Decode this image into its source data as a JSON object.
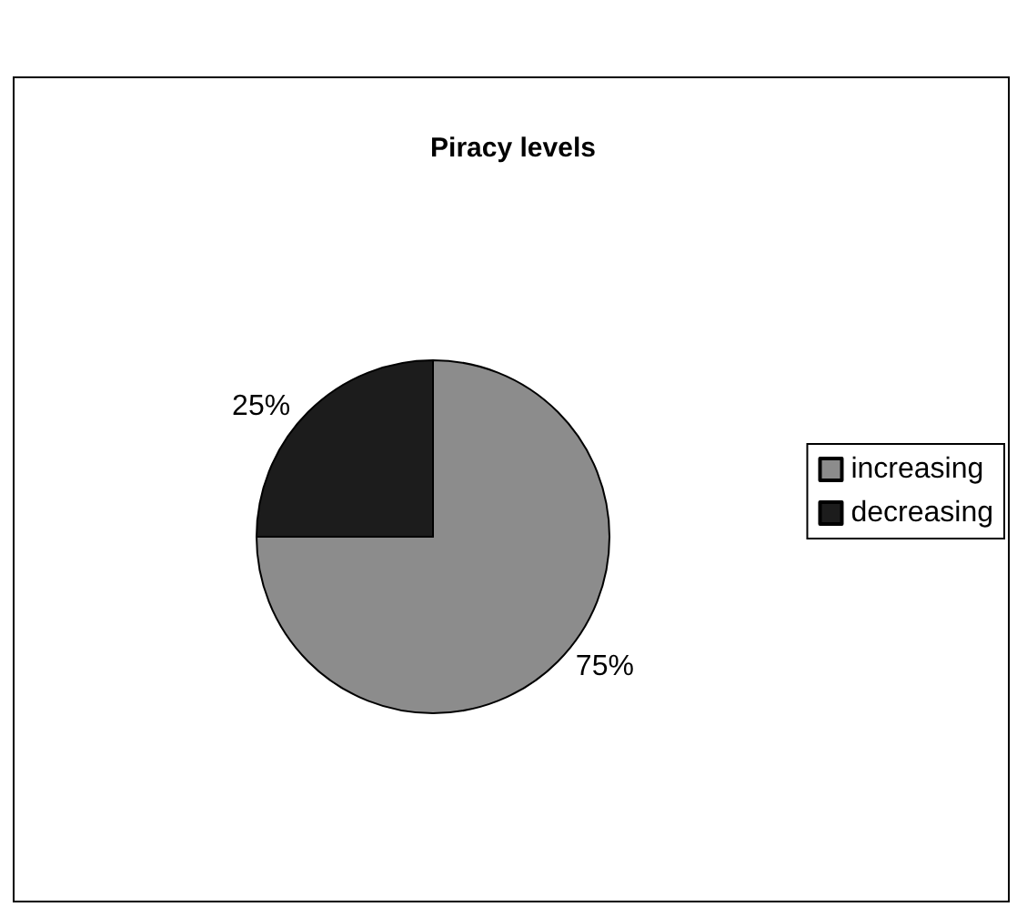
{
  "chart_data": {
    "type": "pie",
    "title": "Piracy levels",
    "categories": [
      "increasing",
      "decreasing"
    ],
    "values": [
      75,
      25
    ],
    "value_labels": [
      "75%",
      "25%"
    ],
    "colors": [
      "#8c8c8c",
      "#1c1c1c"
    ],
    "legend": "right"
  }
}
